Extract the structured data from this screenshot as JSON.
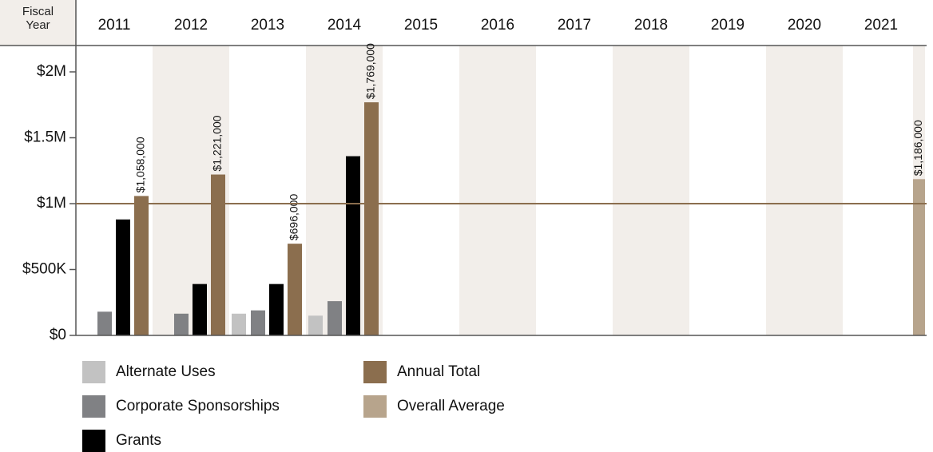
{
  "chart_data": {
    "type": "bar",
    "x_label": "Fiscal Year",
    "categories": [
      "2011",
      "2012",
      "2013",
      "2014",
      "2015",
      "2016",
      "2017",
      "2018",
      "2019",
      "2020",
      "2021"
    ],
    "series": [
      {
        "name": "Alternate Uses",
        "color": "#c2c2c2",
        "values": [
          null,
          null,
          165000,
          150000,
          null,
          null,
          null,
          null,
          null,
          null,
          null
        ]
      },
      {
        "name": "Corporate Sponsorships",
        "color": "#808184",
        "values": [
          180000,
          165000,
          190000,
          260000,
          null,
          null,
          null,
          null,
          null,
          null,
          null
        ]
      },
      {
        "name": "Grants",
        "color": "#000000",
        "values": [
          880000,
          390000,
          390000,
          1360000,
          null,
          null,
          null,
          null,
          null,
          null,
          null
        ]
      },
      {
        "name": "Annual Total",
        "color": "#8b6e4e",
        "values": [
          1058000,
          1221000,
          696000,
          1769000,
          null,
          null,
          null,
          null,
          null,
          null,
          null
        ],
        "value_labels": [
          "$1,058,000",
          "$1,221,000",
          "$696,000",
          "$1,769,000",
          null,
          null,
          null,
          null,
          null,
          null,
          null
        ]
      }
    ],
    "overall_average": {
      "name": "Overall Average",
      "color": "#b7a48c",
      "value": 1186000,
      "value_label": "$1,186,000"
    },
    "reference_line": {
      "value": 1000000,
      "color": "#8b6e4e"
    },
    "ylim": [
      0,
      2200000
    ],
    "yticks": [
      {
        "value": 0,
        "label": "$0"
      },
      {
        "value": 500000,
        "label": "$500K"
      },
      {
        "value": 1000000,
        "label": "$1M"
      },
      {
        "value": 1500000,
        "label": "$1.5M"
      },
      {
        "value": 2000000,
        "label": "$2M"
      }
    ],
    "legend": "bottom-left"
  }
}
